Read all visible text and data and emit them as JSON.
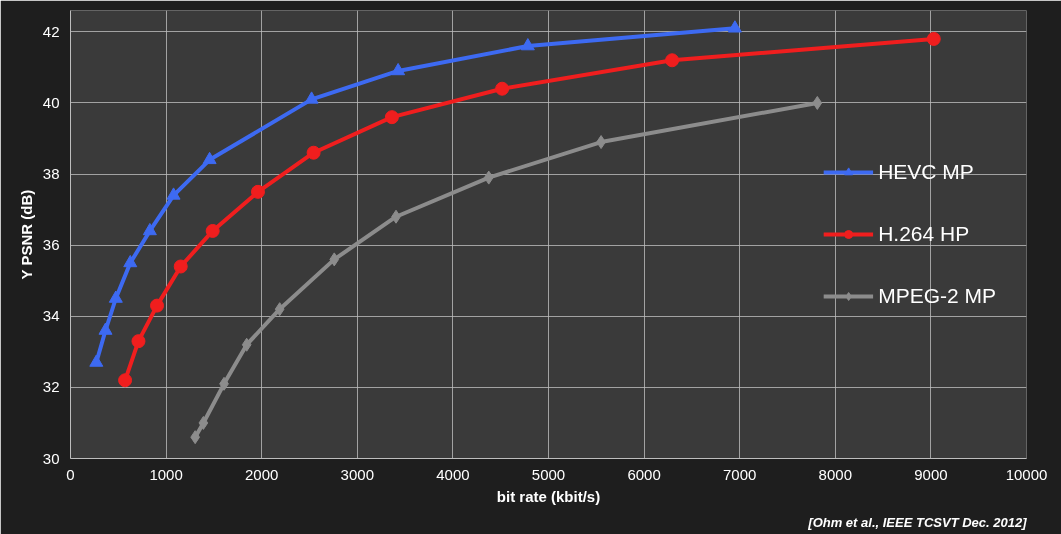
{
  "chart_data": {
    "type": "line",
    "xlabel": "bit rate (kbit/s)",
    "ylabel": "Y PSNR (dB)",
    "xlim": [
      0,
      10000
    ],
    "ylim": [
      30,
      42.6
    ],
    "xticks": [
      0,
      1000,
      2000,
      3000,
      4000,
      5000,
      6000,
      7000,
      8000,
      9000,
      10000
    ],
    "yticks": [
      30,
      32,
      34,
      36,
      38,
      40,
      42
    ],
    "grid": true,
    "legend": "right",
    "annotations": [
      "[Ohm et al., IEEE TCSVT Dec. 2012]"
    ],
    "series": [
      {
        "name": "HEVC MP",
        "color": "#3d6af2",
        "marker": "triangle",
        "x": [
          270,
          366,
          474,
          625,
          830,
          1078,
          1455,
          2522,
          3427,
          4784,
          6950
        ],
        "values": [
          32.7,
          33.6,
          34.5,
          35.5,
          36.4,
          37.4,
          38.4,
          40.1,
          40.9,
          41.6,
          42.1
        ]
      },
      {
        "name": "H.264 HP",
        "color": "#f01e1e",
        "marker": "circle",
        "x": [
          571,
          711,
          905,
          1153,
          1487,
          1961,
          2543,
          3362,
          4515,
          6293,
          9030
        ],
        "values": [
          32.2,
          33.3,
          34.3,
          35.4,
          36.4,
          37.5,
          38.6,
          39.6,
          40.4,
          41.2,
          41.8
        ]
      },
      {
        "name": "MPEG-2 MP",
        "color": "#8c8c8c",
        "marker": "diamond",
        "x": [
          1304,
          1390,
          1606,
          1843,
          2188,
          2759,
          3405,
          4375,
          5550,
          7812
        ],
        "values": [
          30.6,
          31.0,
          32.1,
          33.2,
          34.2,
          35.6,
          36.8,
          37.9,
          38.9,
          40.0
        ]
      }
    ]
  }
}
